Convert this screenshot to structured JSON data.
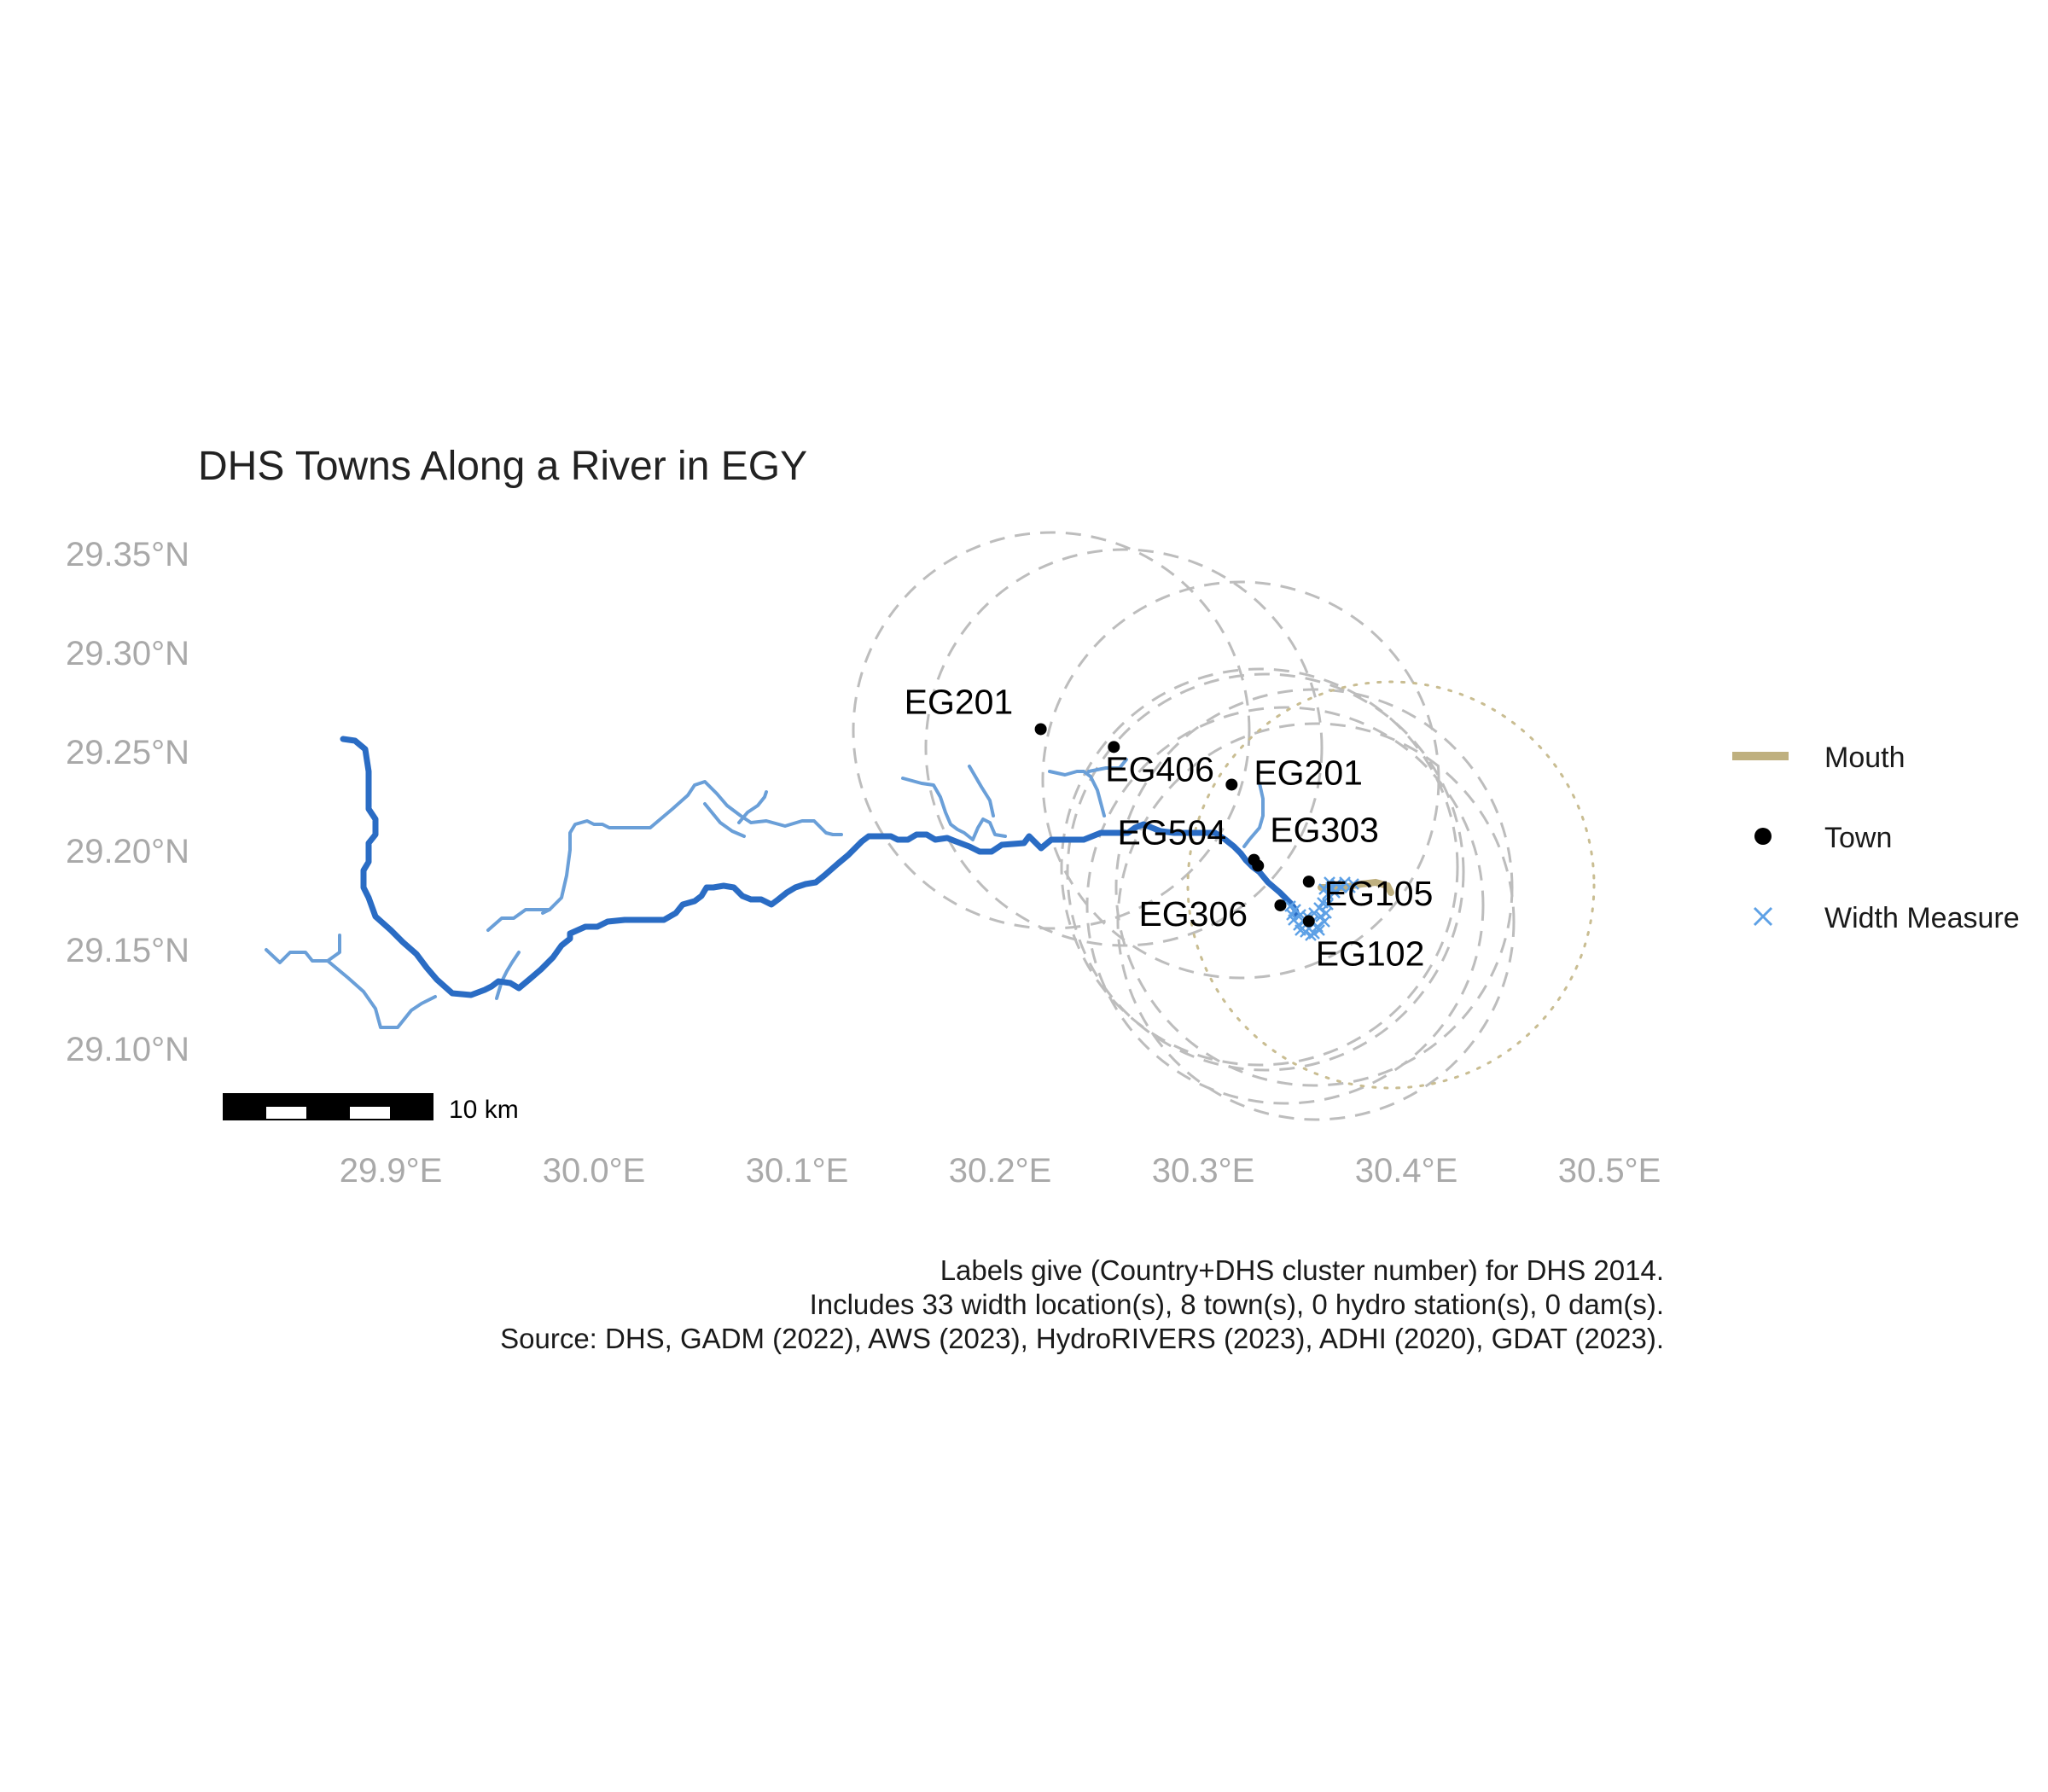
{
  "title": "DHS Towns Along a River in EGY",
  "axes": {
    "y_ticks": [
      "29.35°N",
      "29.30°N",
      "29.25°N",
      "29.20°N",
      "29.15°N",
      "29.10°N"
    ],
    "x_ticks": [
      "29.9°E",
      "30.0°E",
      "30.1°E",
      "30.2°E",
      "30.3°E",
      "30.4°E",
      "30.5°E"
    ]
  },
  "scale_bar": {
    "label": "10 km"
  },
  "legend": {
    "items": [
      {
        "label": "Mouth",
        "symbol": "line",
        "color": "#bfb07f"
      },
      {
        "label": "Town",
        "symbol": "dot",
        "color": "#000000"
      },
      {
        "label": "Width Measure",
        "symbol": "cross",
        "color": "#5ea1e6"
      }
    ]
  },
  "towns": [
    {
      "label": "EG201",
      "lon": 30.22,
      "lat": 29.261
    },
    {
      "label": "EG406",
      "lon": 30.256,
      "lat": 29.252
    },
    {
      "label": "EG201",
      "lon": 30.314,
      "lat": 29.233
    },
    {
      "label": "EG504",
      "lon": 30.325,
      "lat": 29.195
    },
    {
      "label": "EG303",
      "lon": 30.327,
      "lat": 29.192
    },
    {
      "label": "EG306",
      "lon": 30.338,
      "lat": 29.172
    },
    {
      "label": "EG105",
      "lon": 30.352,
      "lat": 29.184
    },
    {
      "label": "EG102",
      "lon": 30.352,
      "lat": 29.164
    }
  ],
  "colors": {
    "main_river": "#2a6cc4",
    "tributary": "#6a9fd8",
    "width_measure": "#5ea1e6",
    "mouth": "#bfb07f",
    "buffer_circle": "#bdbdbd",
    "mouth_circle": "#c9bd92"
  },
  "caption": [
    "Labels give (Country+DHS cluster number) for DHS 2014.",
    "Includes 33 width location(s), 8 town(s), 0 hydro station(s), 0 dam(s).",
    "Source: DHS, GADM (2022), AWS (2023), HydroRIVERS (2023), ADHI (2020), GDAT (2023)."
  ]
}
